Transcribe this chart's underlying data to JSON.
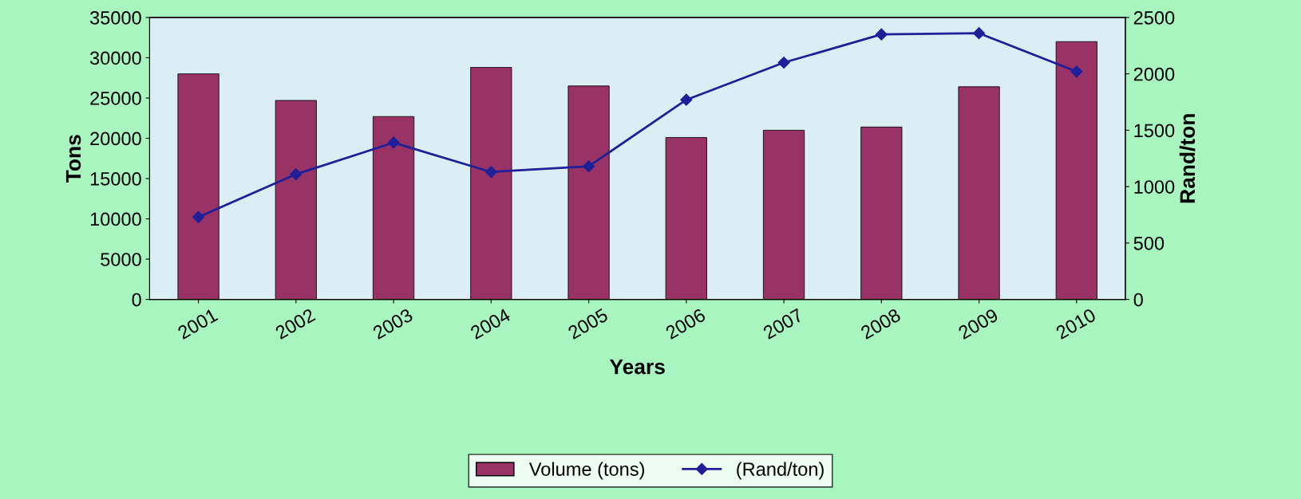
{
  "chart_data": {
    "type": "bar",
    "xlabel": "Years",
    "ylabel": "Tons",
    "y2label": "Rand/ton",
    "categories": [
      "2001",
      "2002",
      "2003",
      "2004",
      "2005",
      "2006",
      "2007",
      "2008",
      "2009",
      "2010"
    ],
    "series": [
      {
        "name": "Volume (tons)",
        "color": "#993366",
        "values": [
          28000,
          24700,
          22700,
          28800,
          26500,
          20100,
          21000,
          21400,
          26400,
          32000
        ]
      },
      {
        "name": "(Rand/ton)",
        "type": "line",
        "axis": "y2",
        "color": "#1f1f99",
        "marker": "diamond",
        "values": [
          730,
          1110,
          1390,
          1130,
          1180,
          1770,
          2100,
          2350,
          2360,
          2020
        ]
      }
    ],
    "ylim": [
      0,
      35000
    ],
    "yticks": [
      0,
      5000,
      10000,
      15000,
      20000,
      25000,
      30000,
      35000
    ],
    "y2lim": [
      0,
      2500
    ],
    "y2ticks": [
      0,
      500,
      1000,
      1500,
      2000,
      2500
    ],
    "grid": false,
    "legend": "bottom"
  }
}
